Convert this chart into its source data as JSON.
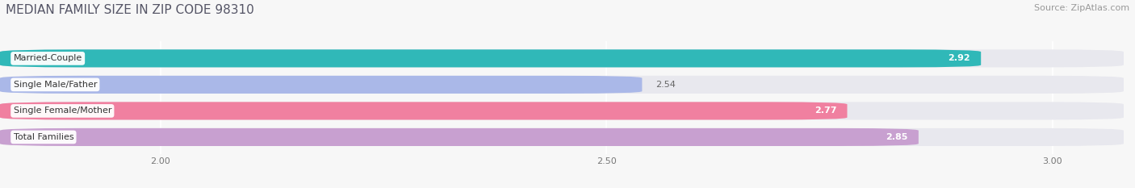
{
  "title": "MEDIAN FAMILY SIZE IN ZIP CODE 98310",
  "source": "Source: ZipAtlas.com",
  "categories": [
    "Married-Couple",
    "Single Male/Father",
    "Single Female/Mother",
    "Total Families"
  ],
  "values": [
    2.92,
    2.54,
    2.77,
    2.85
  ],
  "bar_colors": [
    "#30b8b8",
    "#aab8e8",
    "#f080a0",
    "#c8a0d0"
  ],
  "xlim_min": 1.82,
  "xlim_max": 3.08,
  "data_min": 2.0,
  "data_max": 3.0,
  "xticks": [
    2.0,
    2.5,
    3.0
  ],
  "xtick_labels": [
    "2.00",
    "2.50",
    "3.00"
  ],
  "background_color": "#f7f7f7",
  "bar_bg_color": "#e8e8ee",
  "title_fontsize": 11,
  "source_fontsize": 8,
  "label_fontsize": 8,
  "value_fontsize": 8,
  "bar_height": 0.68,
  "value_label_colors": [
    "#ffffff",
    "#666666",
    "#ffffff",
    "#ffffff"
  ],
  "value_inside": [
    true,
    false,
    true,
    true
  ]
}
